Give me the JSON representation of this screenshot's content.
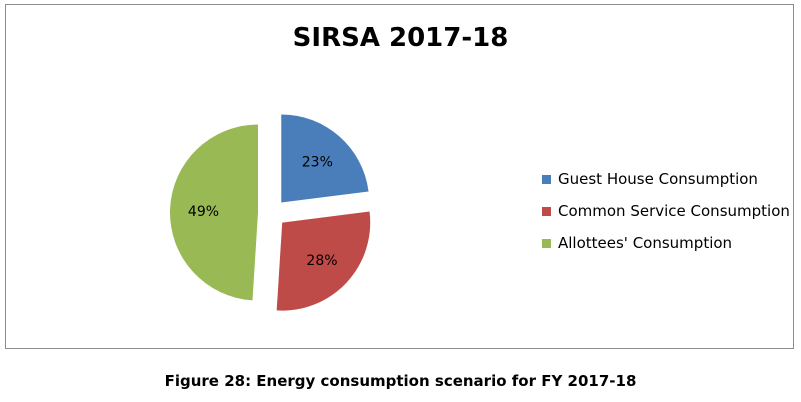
{
  "caption": "Figure 28: Energy consumption scenario for FY 2017-18",
  "chart_data": {
    "type": "pie",
    "title": "SIRSA 2017-18",
    "legend_position": "right",
    "series": [
      {
        "label": "Guest House Consumption",
        "value": 23,
        "display": "23%",
        "color": "#4a7ebb"
      },
      {
        "label": "Common Service Consumption",
        "value": 28,
        "display": "28%",
        "color": "#be4b48"
      },
      {
        "label": "Allottees' Consumption",
        "value": 49,
        "display": "49%",
        "color": "#98b954"
      }
    ]
  }
}
